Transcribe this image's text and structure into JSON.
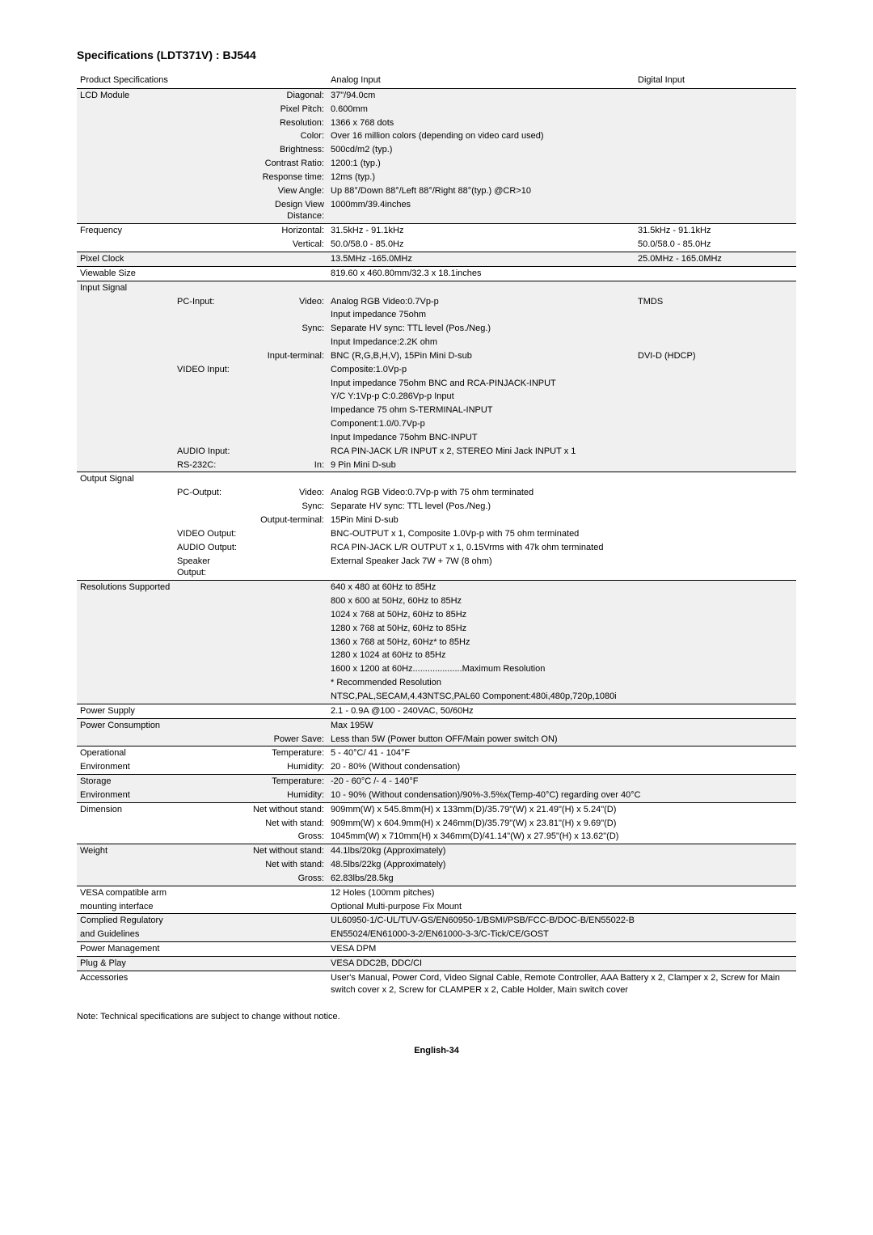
{
  "title": "Specifications (LDT371V) : BJ544",
  "header": {
    "section": "Product Specifications",
    "analog": "Analog Input",
    "digital": "Digital Input"
  },
  "rows": [
    {
      "gray": true,
      "top": true,
      "section": "LCD Module",
      "sub1": "",
      "sub2": "Diagonal:",
      "analog": "37\"/94.0cm",
      "digital": ""
    },
    {
      "gray": true,
      "section": "",
      "sub1": "",
      "sub2": "Pixel Pitch:",
      "analog": "0.600mm",
      "digital": ""
    },
    {
      "gray": true,
      "section": "",
      "sub1": "",
      "sub2": "Resolution:",
      "analog": "1366 x 768 dots",
      "digital": ""
    },
    {
      "gray": true,
      "section": "",
      "sub1": "",
      "sub2": "Color:",
      "analog": "Over 16 million colors (depending on video card used)",
      "digital": ""
    },
    {
      "gray": true,
      "section": "",
      "sub1": "",
      "sub2": "Brightness:",
      "analog": "500cd/m2 (typ.)",
      "digital": ""
    },
    {
      "gray": true,
      "section": "",
      "sub1": "",
      "sub2": "Contrast Ratio:",
      "analog": "1200:1 (typ.)",
      "digital": ""
    },
    {
      "gray": true,
      "section": "",
      "sub1": "",
      "sub2": "Response time:",
      "analog": "12ms (typ.)",
      "digital": ""
    },
    {
      "gray": true,
      "section": "",
      "sub1": "",
      "sub2": "View Angle:",
      "analog": "Up 88°/Down 88°/Left 88°/Right 88°(typ.) @CR>10",
      "digital": ""
    },
    {
      "gray": true,
      "section": "",
      "sub1": "",
      "sub2": "Design View Distance:",
      "analog": "1000mm/39.4inches",
      "digital": ""
    },
    {
      "gray": false,
      "top": true,
      "section": "Frequency",
      "sub1": "",
      "sub2": "Horizontal:",
      "analog": "31.5kHz - 91.1kHz",
      "digital": "31.5kHz - 91.1kHz"
    },
    {
      "gray": false,
      "section": "",
      "sub1": "",
      "sub2": "Vertical:",
      "analog": "50.0/58.0 - 85.0Hz",
      "digital": "50.0/58.0 - 85.0Hz"
    },
    {
      "gray": true,
      "top": true,
      "section": "Pixel Clock",
      "sub1": "",
      "sub2": "",
      "analog": "13.5MHz -165.0MHz",
      "digital": "25.0MHz - 165.0MHz"
    },
    {
      "gray": false,
      "top": true,
      "section": "Viewable Size",
      "sub1": "",
      "sub2": "",
      "analog": "819.60 x 460.80mm/32.3 x 18.1inches",
      "digital": ""
    },
    {
      "gray": true,
      "top": true,
      "section": "Input Signal",
      "sub1": "",
      "sub2": "",
      "analog": "",
      "digital": ""
    },
    {
      "gray": true,
      "section": "",
      "sub1": "PC-Input:",
      "sub2": "Video:",
      "analog": "Analog RGB Video:0.7Vp-p",
      "digital": "TMDS"
    },
    {
      "gray": true,
      "section": "",
      "sub1": "",
      "sub2": "",
      "analog": "Input impedance 75ohm",
      "digital": ""
    },
    {
      "gray": true,
      "section": "",
      "sub1": "",
      "sub2": "Sync:",
      "analog": "Separate HV sync: TTL level (Pos./Neg.)",
      "digital": ""
    },
    {
      "gray": true,
      "section": "",
      "sub1": "",
      "sub2": "",
      "analog": "Input Impedance:2.2K ohm",
      "digital": ""
    },
    {
      "gray": true,
      "section": "",
      "sub1": "",
      "sub2": "Input-terminal:",
      "analog": "BNC (R,G,B,H,V), 15Pin Mini D-sub",
      "digital": "DVI-D (HDCP)"
    },
    {
      "gray": true,
      "section": "",
      "sub1": "VIDEO Input:",
      "sub2": "",
      "analog": "Composite:1.0Vp-p",
      "digital": ""
    },
    {
      "gray": true,
      "section": "",
      "sub1": "",
      "sub2": "",
      "analog": "Input impedance 75ohm BNC and RCA-PINJACK-INPUT",
      "digital": ""
    },
    {
      "gray": true,
      "section": "",
      "sub1": "",
      "sub2": "",
      "analog": "Y/C Y:1Vp-p C:0.286Vp-p Input",
      "digital": ""
    },
    {
      "gray": true,
      "section": "",
      "sub1": "",
      "sub2": "",
      "analog": "Impedance 75 ohm S-TERMINAL-INPUT",
      "digital": ""
    },
    {
      "gray": true,
      "section": "",
      "sub1": "",
      "sub2": "",
      "analog": "Component:1.0/0.7Vp-p",
      "digital": ""
    },
    {
      "gray": true,
      "section": "",
      "sub1": "",
      "sub2": "",
      "analog": "Input Impedance 75ohm BNC-INPUT",
      "digital": ""
    },
    {
      "gray": true,
      "section": "",
      "sub1": "AUDIO Input:",
      "sub2": "",
      "analog": "RCA PIN-JACK L/R INPUT x 2, STEREO Mini Jack INPUT x 1",
      "digital": ""
    },
    {
      "gray": true,
      "section": "",
      "sub1": "RS-232C:",
      "sub2": "In:",
      "analog": "9 Pin Mini D-sub",
      "digital": ""
    },
    {
      "gray": false,
      "top": true,
      "section": "Output Signal",
      "sub1": "",
      "sub2": "",
      "analog": "",
      "digital": ""
    },
    {
      "gray": false,
      "section": "",
      "sub1": "PC-Output:",
      "sub2": "Video:",
      "analog": "Analog RGB Video:0.7Vp-p with 75 ohm terminated",
      "digital": ""
    },
    {
      "gray": false,
      "section": "",
      "sub1": "",
      "sub2": "Sync:",
      "analog": "Separate HV sync: TTL level (Pos./Neg.)",
      "digital": ""
    },
    {
      "gray": false,
      "section": "",
      "sub1": "",
      "sub2": "Output-terminal:",
      "analog": "15Pin Mini D-sub",
      "digital": ""
    },
    {
      "gray": false,
      "section": "",
      "sub1": "VIDEO Output:",
      "sub2": "",
      "analog": "BNC-OUTPUT x 1, Composite 1.0Vp-p with 75 ohm terminated",
      "digital": ""
    },
    {
      "gray": false,
      "section": "",
      "sub1": "AUDIO Output:",
      "sub2": "",
      "analog": "RCA PIN-JACK L/R OUTPUT x 1, 0.15Vrms with 47k ohm terminated",
      "digital": ""
    },
    {
      "gray": false,
      "section": "",
      "sub1": "Speaker Output:",
      "sub2": "",
      "analog": "External Speaker Jack 7W + 7W (8 ohm)",
      "digital": ""
    },
    {
      "gray": true,
      "top": true,
      "section": "Resolutions Supported",
      "sub1": "",
      "sub2": "",
      "analog": "640 x 480 at 60Hz to 85Hz",
      "digital": ""
    },
    {
      "gray": true,
      "section": "",
      "sub1": "",
      "sub2": "",
      "analog": "800 x 600 at 50Hz, 60Hz to 85Hz",
      "digital": ""
    },
    {
      "gray": true,
      "section": "",
      "sub1": "",
      "sub2": "",
      "analog": "1024 x 768 at 50Hz, 60Hz to 85Hz",
      "digital": ""
    },
    {
      "gray": true,
      "section": "",
      "sub1": "",
      "sub2": "",
      "analog": "1280 x 768 at 50Hz, 60Hz to 85Hz",
      "digital": ""
    },
    {
      "gray": true,
      "section": "",
      "sub1": "",
      "sub2": "",
      "analog": "1360 x 768 at 50Hz, 60Hz* to 85Hz",
      "digital": ""
    },
    {
      "gray": true,
      "section": "",
      "sub1": "",
      "sub2": "",
      "analog": "1280 x 1024 at 60Hz to 85Hz",
      "digital": ""
    },
    {
      "gray": true,
      "section": "",
      "sub1": "",
      "sub2": "",
      "analog": "1600 x 1200 at 60Hz....................Maximum Resolution",
      "digital": ""
    },
    {
      "gray": true,
      "section": "",
      "sub1": "",
      "sub2": "",
      "analog": "* Recommended Resolution",
      "digital": ""
    },
    {
      "gray": true,
      "section": "",
      "sub1": "",
      "sub2": "",
      "analog": "NTSC,PAL,SECAM,4.43NTSC,PAL60  Component:480i,480p,720p,1080i",
      "digital": ""
    },
    {
      "gray": false,
      "top": true,
      "section": "Power Supply",
      "sub1": "",
      "sub2": "",
      "analog": "2.1 - 0.9A @100 - 240VAC, 50/60Hz",
      "digital": ""
    },
    {
      "gray": true,
      "top": true,
      "section": "Power Consumption",
      "sub1": "",
      "sub2": "",
      "analog": "Max 195W",
      "digital": ""
    },
    {
      "gray": true,
      "section": "",
      "sub1": "",
      "sub2": "Power Save:",
      "analog": "Less than 5W (Power button OFF/Main power switch ON)",
      "digital": ""
    },
    {
      "gray": false,
      "top": true,
      "section": "Operational",
      "sub1": "",
      "sub2": "Temperature:",
      "analog": "5 - 40°C/ 41 - 104°F",
      "digital": ""
    },
    {
      "gray": false,
      "section": "Environment",
      "sub1": "",
      "sub2": "Humidity:",
      "analog": "20 - 80% (Without condensation)",
      "digital": ""
    },
    {
      "gray": true,
      "top": true,
      "section": "Storage",
      "sub1": "",
      "sub2": "Temperature:",
      "analog": "-20 - 60°C /- 4 - 140°F",
      "digital": ""
    },
    {
      "gray": true,
      "section": "Environment",
      "sub1": "",
      "sub2": "Humidity:",
      "analog": "10 - 90% (Without condensation)/90%-3.5%x(Temp-40°C) regarding over 40°C",
      "digital": ""
    },
    {
      "gray": false,
      "top": true,
      "section": "Dimension",
      "sub1": "",
      "sub2": "Net without stand:",
      "analog": "909mm(W) x 545.8mm(H) x 133mm(D)/35.79\"(W) x 21.49\"(H) x 5.24\"(D)",
      "digital": ""
    },
    {
      "gray": false,
      "section": "",
      "sub1": "",
      "sub2": "Net with stand:",
      "analog": "909mm(W) x 604.9mm(H) x 246mm(D)/35.79\"(W) x 23.81\"(H) x 9.69\"(D)",
      "digital": ""
    },
    {
      "gray": false,
      "section": "",
      "sub1": "",
      "sub2": "Gross:",
      "analog": "1045mm(W) x 710mm(H) x 346mm(D)/41.14\"(W) x 27.95\"(H) x 13.62\"(D)",
      "digital": ""
    },
    {
      "gray": true,
      "top": true,
      "section": "Weight",
      "sub1": "",
      "sub2": "Net without stand:",
      "analog": "44.1lbs/20kg (Approximately)",
      "digital": ""
    },
    {
      "gray": true,
      "section": "",
      "sub1": "",
      "sub2": "Net with stand:",
      "analog": "48.5lbs/22kg (Approximately)",
      "digital": ""
    },
    {
      "gray": true,
      "section": "",
      "sub1": "",
      "sub2": "Gross:",
      "analog": "62.83lbs/28.5kg",
      "digital": ""
    },
    {
      "gray": false,
      "top": true,
      "section": "VESA compatible arm",
      "sub1": "",
      "sub2": "",
      "analog": "12 Holes (100mm pitches)",
      "digital": ""
    },
    {
      "gray": false,
      "section": "mounting interface",
      "sub1": "",
      "sub2": "",
      "analog": "Optional Multi-purpose Fix Mount",
      "digital": ""
    },
    {
      "gray": true,
      "top": true,
      "section": "Complied Regulatory",
      "sub1": "",
      "sub2": "",
      "analog": "UL60950-1/C-UL/TUV-GS/EN60950-1/BSMI/PSB/FCC-B/DOC-B/EN55022-B",
      "digital": ""
    },
    {
      "gray": true,
      "section": "and Guidelines",
      "sub1": "",
      "sub2": "",
      "analog": "EN55024/EN61000-3-2/EN61000-3-3/C-Tick/CE/GOST",
      "digital": ""
    },
    {
      "gray": false,
      "top": true,
      "section": "Power Management",
      "sub1": "",
      "sub2": "",
      "analog": "VESA DPM",
      "digital": ""
    },
    {
      "gray": true,
      "top": true,
      "section": "Plug & Play",
      "sub1": "",
      "sub2": "",
      "analog": "VESA DDC2B, DDC/CI",
      "digital": ""
    },
    {
      "gray": false,
      "top": true,
      "section": "Accessories",
      "sub1": "",
      "sub2": "",
      "analog": "User's Manual, Power Cord, Video Signal Cable, Remote Controller, AAA Battery x 2, Clamper x 2, Screw for Main switch cover x 2, Screw for CLAMPER x 2, Cable Holder, Main switch cover",
      "digital": ""
    }
  ],
  "note": "Note: Technical specifications are subject to change without notice.",
  "footer": "English-34"
}
